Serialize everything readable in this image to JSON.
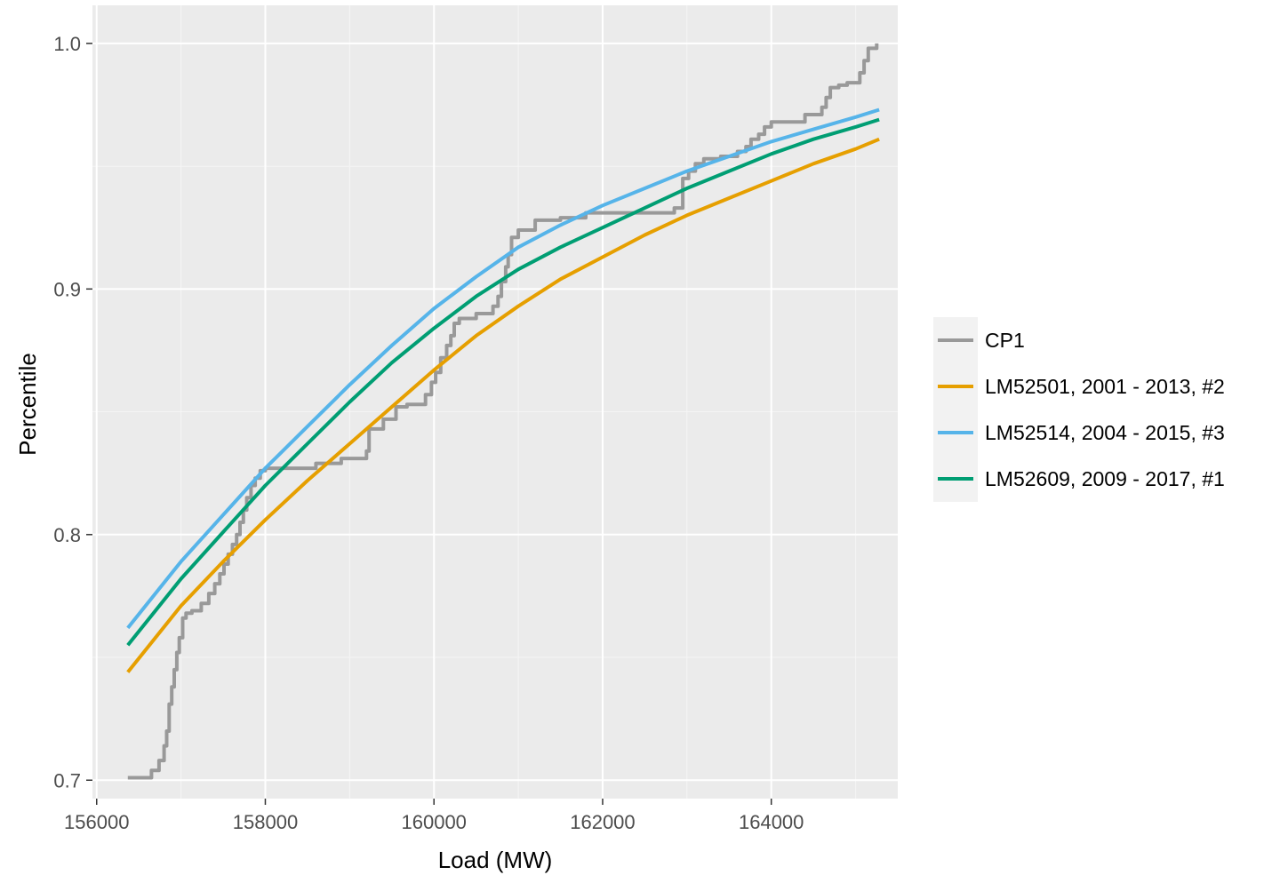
{
  "chart_data": {
    "type": "line",
    "title": "",
    "xlabel": "Load (MW)",
    "ylabel": "Percentile",
    "xlim": [
      155950,
      165500
    ],
    "ylim": [
      0.6925,
      1.0155
    ],
    "x_ticks": [
      156000,
      158000,
      160000,
      162000,
      164000
    ],
    "x_tick_labels": [
      "156000",
      "158000",
      "160000",
      "162000",
      "164000"
    ],
    "y_ticks": [
      0.7,
      0.8,
      0.9,
      1.0
    ],
    "y_tick_labels": [
      "0.7",
      "0.8",
      "0.9",
      "1.0"
    ],
    "grid": true,
    "legend_position": "right",
    "colors": {
      "panel_background": "#ebebeb",
      "grid_major": "#ffffff",
      "grid_minor": "#f5f5f5",
      "axis_tick": "#333333"
    },
    "series": [
      {
        "name": "CP1",
        "color": "#999999",
        "step": true,
        "x": [
          156370,
          156650,
          156740,
          156800,
          156830,
          156860,
          156890,
          156920,
          156950,
          156980,
          157020,
          157060,
          157100,
          157130,
          157240,
          157330,
          157400,
          157460,
          157510,
          157560,
          157610,
          157660,
          157700,
          157740,
          157780,
          157830,
          157880,
          157940,
          158000,
          158150,
          158600,
          158900,
          159200,
          159230,
          159400,
          159550,
          159680,
          159900,
          159970,
          160020,
          160080,
          160150,
          160200,
          160240,
          160300,
          160500,
          160700,
          160760,
          160800,
          160850,
          160880,
          160920,
          161000,
          161200,
          161500,
          161800,
          162400,
          162850,
          162950,
          163020,
          163100,
          163200,
          163400,
          163600,
          163700,
          163760,
          163850,
          163920,
          164000,
          164400,
          164600,
          164650,
          164700,
          164800,
          164900,
          165050,
          165100,
          165150,
          165250
        ],
        "y": [
          0.701,
          0.704,
          0.708,
          0.714,
          0.72,
          0.731,
          0.738,
          0.745,
          0.752,
          0.758,
          0.766,
          0.768,
          0.768,
          0.769,
          0.772,
          0.776,
          0.78,
          0.784,
          0.788,
          0.792,
          0.796,
          0.8,
          0.805,
          0.81,
          0.815,
          0.82,
          0.823,
          0.826,
          0.827,
          0.827,
          0.829,
          0.831,
          0.834,
          0.843,
          0.847,
          0.852,
          0.853,
          0.857,
          0.862,
          0.866,
          0.872,
          0.877,
          0.881,
          0.886,
          0.888,
          0.89,
          0.893,
          0.897,
          0.903,
          0.909,
          0.914,
          0.921,
          0.924,
          0.928,
          0.929,
          0.931,
          0.931,
          0.933,
          0.945,
          0.948,
          0.951,
          0.953,
          0.954,
          0.956,
          0.958,
          0.961,
          0.963,
          0.966,
          0.968,
          0.971,
          0.974,
          0.978,
          0.982,
          0.983,
          0.984,
          0.988,
          0.993,
          0.998,
          1.0
        ]
      },
      {
        "name": "LM52501, 2001 - 2013,  #2",
        "color": "#e69f00",
        "x": [
          156370,
          157000,
          157500,
          158000,
          158500,
          159000,
          159500,
          160000,
          160500,
          161000,
          161500,
          162000,
          162500,
          163000,
          163500,
          164000,
          164500,
          165000,
          165280
        ],
        "y": [
          0.744,
          0.771,
          0.789,
          0.806,
          0.822,
          0.837,
          0.852,
          0.867,
          0.881,
          0.893,
          0.904,
          0.913,
          0.922,
          0.93,
          0.937,
          0.944,
          0.951,
          0.957,
          0.961
        ]
      },
      {
        "name": "LM52514, 2004 - 2015,  #3",
        "color": "#56b4e9",
        "x": [
          156370,
          157000,
          157500,
          158000,
          158500,
          159000,
          159500,
          160000,
          160500,
          161000,
          161500,
          162000,
          162500,
          163000,
          163500,
          164000,
          164500,
          165000,
          165280
        ],
        "y": [
          0.762,
          0.789,
          0.808,
          0.827,
          0.844,
          0.861,
          0.877,
          0.892,
          0.905,
          0.917,
          0.926,
          0.934,
          0.941,
          0.948,
          0.954,
          0.96,
          0.965,
          0.97,
          0.973
        ]
      },
      {
        "name": "LM52609, 2009 - 2017,  #1",
        "color": "#009e73",
        "x": [
          156370,
          157000,
          157500,
          158000,
          158500,
          159000,
          159500,
          160000,
          160500,
          161000,
          161500,
          162000,
          162500,
          163000,
          163500,
          164000,
          164500,
          165000,
          165280
        ],
        "y": [
          0.755,
          0.782,
          0.801,
          0.82,
          0.837,
          0.854,
          0.87,
          0.884,
          0.897,
          0.908,
          0.917,
          0.925,
          0.933,
          0.941,
          0.948,
          0.955,
          0.961,
          0.966,
          0.969
        ]
      }
    ]
  }
}
